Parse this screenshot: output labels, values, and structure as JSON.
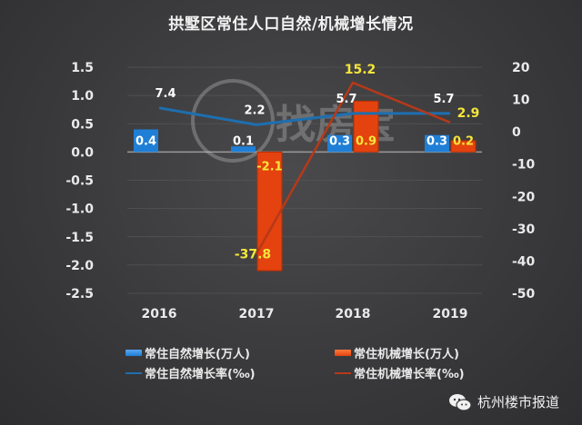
{
  "title": "拱墅区常住人口自然/机械增长情况",
  "watermark": "找房宝",
  "brand": "杭州楼市报道",
  "legend": [
    {
      "label": "常住自然增长(万人)",
      "type": "bar",
      "color": "#1f7fd6"
    },
    {
      "label": "常住机械增长(万人)",
      "type": "bar",
      "color": "#e4420e"
    },
    {
      "label": "常住自然增长率(‰)",
      "type": "line",
      "color": "#1d6fb0"
    },
    {
      "label": "常住机械增长率(‰)",
      "type": "line",
      "color": "#b5391a"
    }
  ],
  "left_axis_ticks": [
    "1.5",
    "1.0",
    "0.5",
    "0.0",
    "-0.5",
    "-1.0",
    "-1.5",
    "-2.0",
    "-2.5"
  ],
  "right_axis_ticks": [
    "20",
    "10",
    "0",
    "-10",
    "-20",
    "-30",
    "-40",
    "-50"
  ],
  "x_ticks": [
    "2016",
    "2017",
    "2018",
    "2019"
  ],
  "chart_data": {
    "type": "bar",
    "title": "拱墅区常住人口自然/机械增长情况",
    "categories": [
      "2016",
      "2017",
      "2018",
      "2019"
    ],
    "series": [
      {
        "name": "常住自然增长(万人)",
        "type": "bar",
        "axis": "left",
        "values": [
          0.4,
          0.1,
          0.3,
          0.3
        ],
        "labels": [
          "0.4",
          "0.1",
          "0.3",
          "0.3"
        ]
      },
      {
        "name": "常住机械增长(万人)",
        "type": "bar",
        "axis": "left",
        "values": [
          null,
          -2.1,
          0.9,
          0.2
        ],
        "labels": [
          "",
          "-2.1",
          "0.9",
          "0.2"
        ]
      },
      {
        "name": "常住自然增长率(‰)",
        "type": "line",
        "axis": "right",
        "values": [
          7.4,
          2.2,
          5.7,
          5.7
        ],
        "labels": [
          "7.4",
          "2.2",
          "5.7",
          "5.7"
        ]
      },
      {
        "name": "常住机械增长率(‰)",
        "type": "line",
        "axis": "right",
        "values": [
          null,
          -37.8,
          15.2,
          2.9
        ],
        "labels": [
          "",
          "-37.8",
          "15.2",
          "2.9"
        ]
      }
    ],
    "ylim_left": [
      -2.5,
      1.5
    ],
    "ylim_right": [
      -50,
      20
    ],
    "xlabel": "",
    "ylabel": "",
    "grid": true,
    "legend_position": "bottom"
  }
}
